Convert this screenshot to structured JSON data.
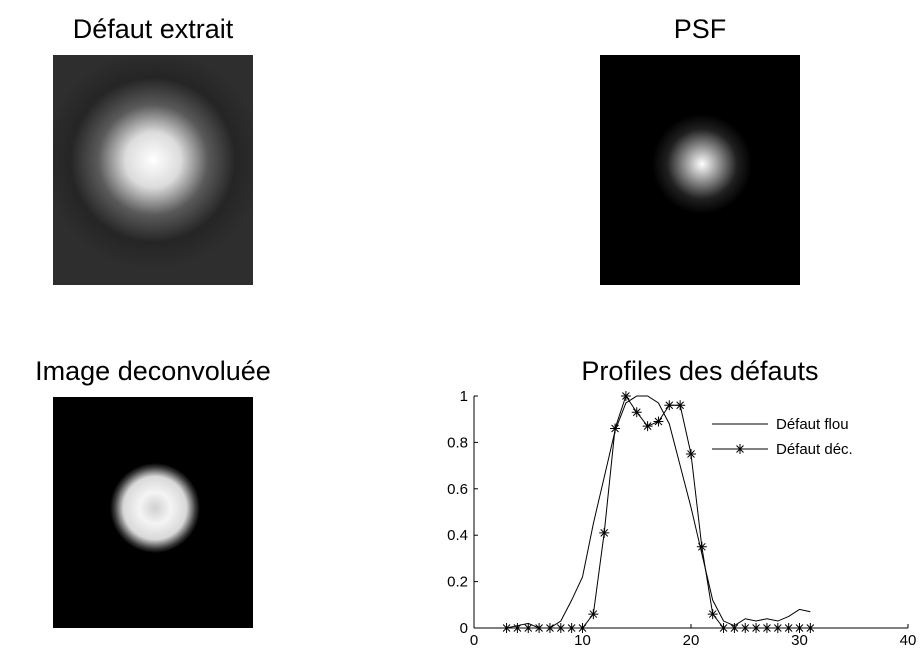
{
  "panels": [
    {
      "title": "Défaut extrait"
    },
    {
      "title": "PSF"
    },
    {
      "title": "Image deconvoluée"
    }
  ],
  "chart_data": {
    "type": "line",
    "title": "Profiles des défauts",
    "x": [
      3,
      4,
      5,
      6,
      7,
      8,
      9,
      10,
      11,
      12,
      13,
      14,
      15,
      16,
      17,
      18,
      19,
      20,
      21,
      22,
      23,
      24,
      25,
      26,
      27,
      28,
      29,
      30,
      31
    ],
    "series": [
      {
        "name": "Défaut flou",
        "color": "#000000",
        "marker": "none",
        "values": [
          0,
          0.01,
          0.02,
          0,
          0,
          0.03,
          0.12,
          0.22,
          0.45,
          0.65,
          0.85,
          0.97,
          1.0,
          1.0,
          0.97,
          0.88,
          0.7,
          0.52,
          0.32,
          0.12,
          0.03,
          0.01,
          0.04,
          0.03,
          0.04,
          0.03,
          0.05,
          0.08,
          0.07
        ]
      },
      {
        "name": "Défaut déc.",
        "color": "#000000",
        "marker": "asterisk",
        "values": [
          0,
          0,
          0,
          0,
          0,
          0,
          0,
          0,
          0.06,
          0.41,
          0.86,
          1.0,
          0.93,
          0.87,
          0.89,
          0.96,
          0.96,
          0.75,
          0.35,
          0.06,
          0,
          0,
          0,
          0,
          0,
          0,
          0,
          0,
          0
        ]
      }
    ],
    "xlim": [
      0,
      40
    ],
    "ylim": [
      0,
      1
    ],
    "xticks": [
      0,
      10,
      20,
      30,
      40
    ],
    "yticks": [
      0,
      0.2,
      0.4,
      0.6,
      0.8,
      1
    ],
    "legend": "northeast"
  }
}
